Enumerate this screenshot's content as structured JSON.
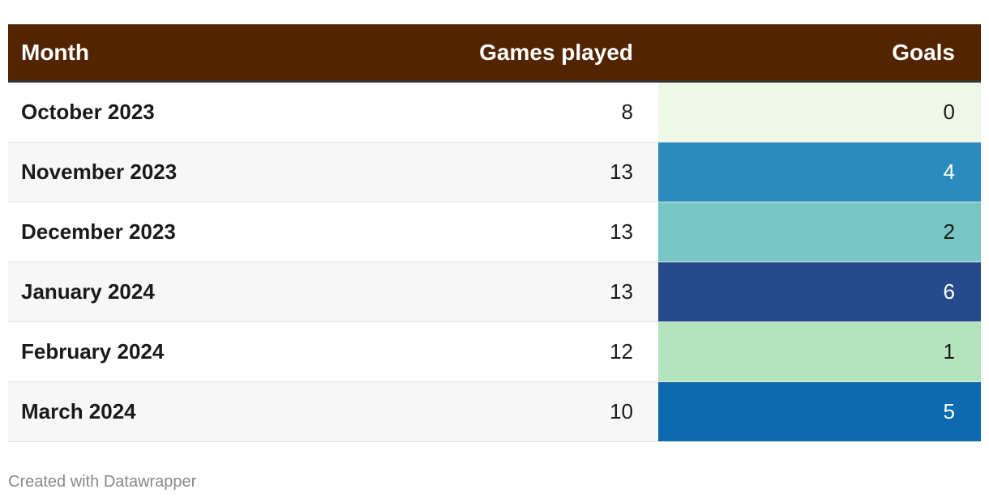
{
  "table": {
    "header": [
      "Month",
      "Games played",
      "Goals"
    ],
    "rows": [
      [
        "October 2023",
        8,
        0
      ],
      [
        "November 2023",
        13,
        4
      ],
      [
        "December 2023",
        13,
        2
      ],
      [
        "January 2024",
        13,
        6
      ],
      [
        "February 2024",
        12,
        1
      ],
      [
        "March 2024",
        10,
        5
      ]
    ],
    "goal_colors": [
      "#eff8e6",
      "#2b8bbe",
      "#77c6c6",
      "#254b8c",
      "#b5e3bd",
      "#0d6aae"
    ],
    "header_color": "#532400"
  },
  "footer": "Created with Datawrapper"
}
